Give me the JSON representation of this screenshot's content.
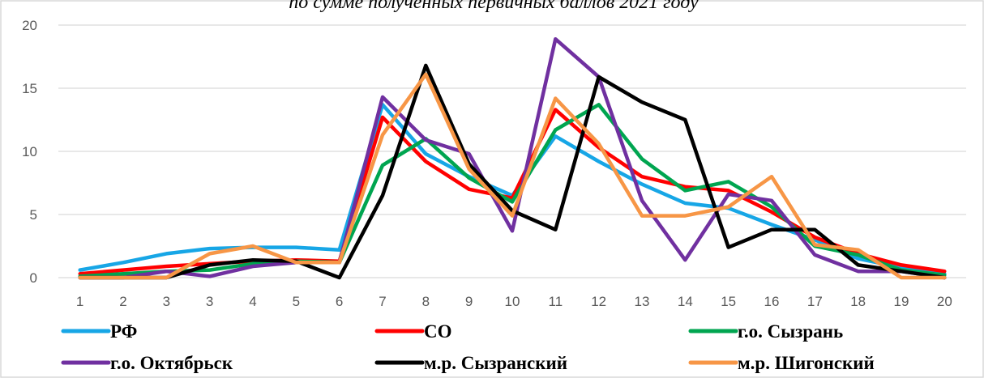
{
  "chart_data": {
    "type": "line",
    "title": "по сумме полученных первичных баллов 2021 году",
    "xlabel": "",
    "ylabel": "",
    "categories": [
      "1",
      "2",
      "3",
      "3",
      "4",
      "5",
      "6",
      "7",
      "8",
      "9",
      "10",
      "11",
      "12",
      "13",
      "14",
      "15",
      "16",
      "17",
      "18",
      "19",
      "20"
    ],
    "ylim": [
      0,
      20
    ],
    "yticks": [
      0,
      5,
      10,
      15,
      20
    ],
    "grid": true,
    "legend_position": "bottom",
    "series": [
      {
        "name": "РФ",
        "color": "#17A6E6",
        "values": [
          0.6,
          1.2,
          1.9,
          2.3,
          2.4,
          2.4,
          2.2,
          13.7,
          9.8,
          8.0,
          6.5,
          11.2,
          9.2,
          7.4,
          5.9,
          5.5,
          4.2,
          3.0,
          1.5,
          0.8,
          0.3
        ]
      },
      {
        "name": "СО",
        "color": "#FF0000",
        "values": [
          0.3,
          0.6,
          0.9,
          1.1,
          1.3,
          1.4,
          1.3,
          12.7,
          9.2,
          7.0,
          6.3,
          13.3,
          10.3,
          8.0,
          7.2,
          6.9,
          5.2,
          3.2,
          1.9,
          1.0,
          0.5
        ]
      },
      {
        "name": "г.о. Сызрань",
        "color": "#00A550",
        "values": [
          0.1,
          0.3,
          0.5,
          0.6,
          1.1,
          1.3,
          1.2,
          8.9,
          11.0,
          7.9,
          6.0,
          11.7,
          13.7,
          9.4,
          6.9,
          7.6,
          5.6,
          2.5,
          1.8,
          0.6,
          0.2
        ]
      },
      {
        "name": "г.о. Октябрьск",
        "color": "#7030A0",
        "values": [
          0,
          0,
          0.5,
          0.1,
          0.9,
          1.2,
          1.2,
          14.3,
          10.9,
          9.8,
          3.7,
          18.9,
          15.9,
          6.1,
          1.4,
          6.6,
          6.1,
          1.8,
          0.5,
          0.5,
          0
        ]
      },
      {
        "name": "м.р. Сызранский",
        "color": "#000000",
        "values": [
          0,
          0,
          0,
          1.0,
          1.4,
          1.3,
          0,
          6.5,
          16.8,
          9.0,
          5.3,
          3.8,
          15.9,
          13.9,
          12.5,
          2.4,
          3.8,
          3.8,
          1.0,
          0.5,
          0
        ]
      },
      {
        "name": "м.р. Шигонский",
        "color": "#F79646",
        "values": [
          0,
          0,
          0,
          1.9,
          2.5,
          1.2,
          1.2,
          11.3,
          16.1,
          8.6,
          4.9,
          14.2,
          10.6,
          4.9,
          4.9,
          5.6,
          8.0,
          2.6,
          2.2,
          0,
          0
        ]
      }
    ]
  }
}
